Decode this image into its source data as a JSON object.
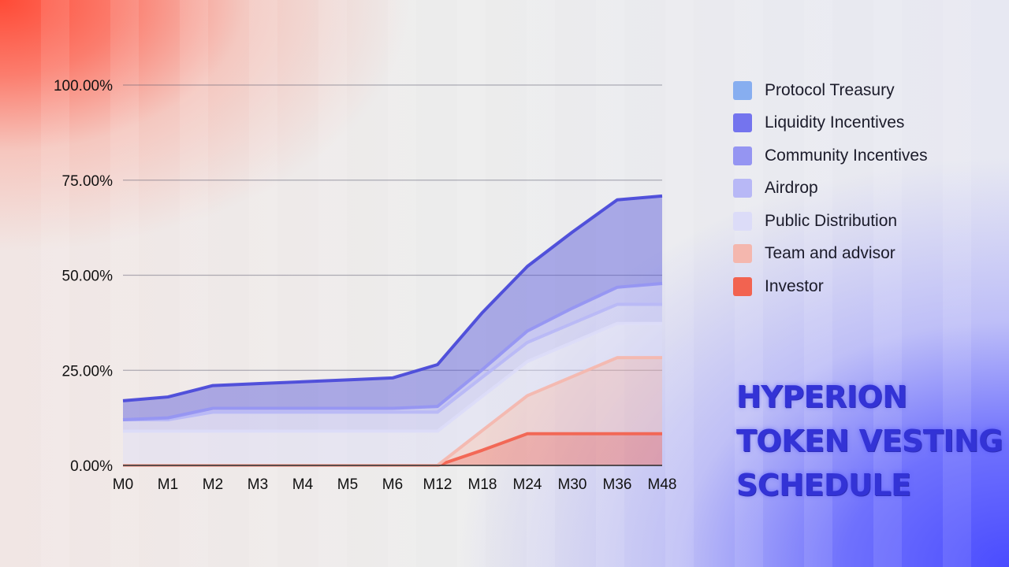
{
  "chart_data": {
    "type": "area",
    "stacked": true,
    "categories": [
      "M0",
      "M1",
      "M2",
      "M3",
      "M4",
      "M5",
      "M6",
      "M12",
      "M18",
      "M24",
      "M30",
      "M36",
      "M48"
    ],
    "yticks": [
      "0.00%",
      "25.00%",
      "50.00%",
      "75.00%",
      "100.00%"
    ],
    "ylim": [
      0,
      100
    ],
    "grid": true,
    "legend_position": "right",
    "series": [
      {
        "name": "Investor",
        "color": "#f26350",
        "values": [
          0,
          0,
          0,
          0,
          0,
          0,
          0,
          0,
          4,
          8.33,
          8.33,
          8.33,
          8.33
        ]
      },
      {
        "name": "Team and advisor",
        "color": "#f4b7ae",
        "values": [
          0,
          0,
          0,
          0,
          0,
          0,
          0,
          0,
          5.2,
          10,
          15,
          20,
          20
        ]
      },
      {
        "name": "Public Distribution",
        "color": "#dcdcf8",
        "values": [
          9,
          9,
          9,
          9,
          9,
          9,
          9,
          9,
          9,
          9,
          9,
          9,
          9
        ]
      },
      {
        "name": "Airdrop",
        "color": "#b8b8f6",
        "values": [
          3,
          3,
          5,
          5,
          5,
          5,
          5,
          5,
          5,
          5,
          5,
          5,
          5
        ]
      },
      {
        "name": "Community Incentives",
        "color": "#9595f2",
        "values": [
          0,
          0.5,
          1,
          1,
          1,
          1,
          1,
          1.5,
          2,
          3,
          4,
          4.5,
          5.5
        ]
      },
      {
        "name": "Liquidity Incentives",
        "color": "#7474ee",
        "values": [
          0,
          0,
          0,
          0,
          0,
          0,
          0,
          0,
          0,
          0,
          0,
          0,
          0
        ]
      },
      {
        "name": "Protocol Treasury",
        "color": "#87aef0",
        "values": [
          0,
          0,
          0,
          0,
          0,
          0,
          0,
          0,
          0,
          0,
          0,
          0,
          0
        ]
      }
    ],
    "top_band_color": "#4a4ad9",
    "top_band_values": [
      5,
      5.5,
      6,
      6.5,
      7,
      7.5,
      8,
      11,
      15,
      17,
      20,
      23,
      23
    ]
  },
  "legend": [
    {
      "label": "Protocol Treasury",
      "color": "#87aef0"
    },
    {
      "label": "Liquidity Incentives",
      "color": "#7474ee"
    },
    {
      "label": "Community Incentives",
      "color": "#9595f2"
    },
    {
      "label": "Airdrop",
      "color": "#b8b8f6"
    },
    {
      "label": "Public Distribution",
      "color": "#dcdcf8"
    },
    {
      "label": "Team and advisor",
      "color": "#f4b7ae"
    },
    {
      "label": "Investor",
      "color": "#f26350"
    }
  ],
  "title": {
    "line1": "HYPERION",
    "line2": "TOKEN VESTING",
    "line3": "SCHEDULE"
  }
}
